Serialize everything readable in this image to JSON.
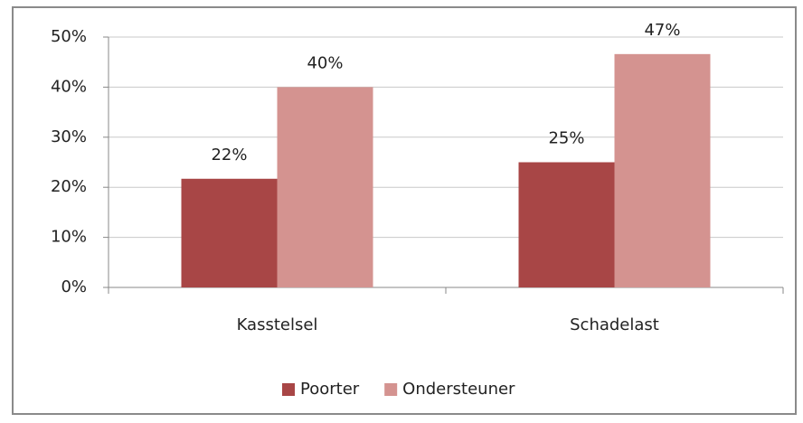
{
  "chart_data": {
    "type": "bar",
    "categories": [
      "Kasstelsel",
      "Schadelast"
    ],
    "series": [
      {
        "name": "Poorter",
        "color": "#a84646",
        "values": [
          21.7,
          25
        ],
        "value_labels": [
          "22%",
          "25%"
        ]
      },
      {
        "name": "Ondersteuner",
        "color": "#d49390",
        "values": [
          40,
          46.6
        ],
        "value_labels": [
          "40%",
          "47%"
        ]
      }
    ],
    "ylim": [
      0,
      50
    ],
    "yticks": [
      {
        "value": 0,
        "label": "0%"
      },
      {
        "value": 10,
        "label": "10%"
      },
      {
        "value": 20,
        "label": "20%"
      },
      {
        "value": 30,
        "label": "30%"
      },
      {
        "value": 40,
        "label": "40%"
      },
      {
        "value": 50,
        "label": "50%"
      }
    ],
    "grid": true,
    "legend": "bottom"
  }
}
